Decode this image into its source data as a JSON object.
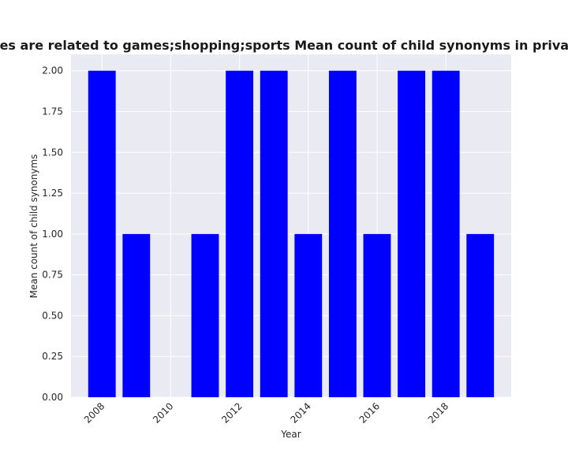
{
  "chart_data": {
    "type": "bar",
    "title": "Categories are related to games;shopping;sports Mean count of child synonyms in privacy policies",
    "xlabel": "Year",
    "ylabel": "Mean count of child synonyms",
    "x": [
      2008,
      2009,
      2010,
      2011,
      2012,
      2013,
      2014,
      2015,
      2016,
      2017,
      2018,
      2019
    ],
    "values": [
      2,
      1,
      0,
      1,
      2,
      2,
      1,
      2,
      1,
      2,
      2,
      1
    ],
    "xticks": [
      2008,
      2010,
      2012,
      2014,
      2016,
      2018
    ],
    "xtick_labels": [
      "2008",
      "2010",
      "2012",
      "2014",
      "2016",
      "2018"
    ],
    "yticks": [
      0,
      0.25,
      0.5,
      0.75,
      1.0,
      1.25,
      1.5,
      1.75,
      2.0
    ],
    "ytick_labels": [
      "0.00",
      "0.25",
      "0.50",
      "0.75",
      "1.00",
      "1.25",
      "1.50",
      "1.75",
      "2.00"
    ],
    "ylim": [
      0,
      2.1
    ],
    "xlim": [
      2007.1,
      2019.9
    ],
    "grid": true,
    "bar_color": "#0000ff",
    "background_color": "#eaeaf2",
    "grid_color": "#ffffff"
  }
}
